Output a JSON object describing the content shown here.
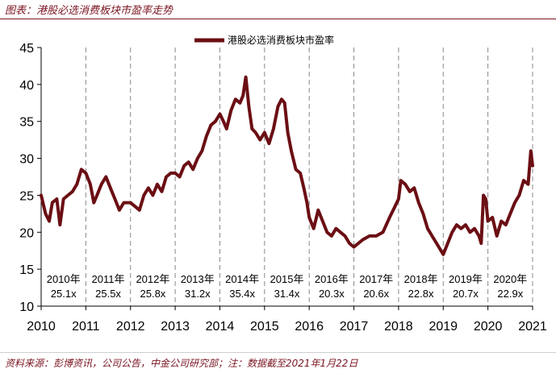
{
  "header": {
    "title": "图表：港股必选消费板块市盈率走势"
  },
  "footer": {
    "source": "资料来源：彭博资讯，公司公告，中金公司研究部；注：数据截至2021年1月22日"
  },
  "colors": {
    "series": "#6b0f14",
    "title": "#7a1420",
    "grid": "#888888"
  },
  "chart_data": {
    "type": "line",
    "title": "图表：港股必选消费板块市盈率走势",
    "xlabel": "",
    "ylabel": "",
    "ylim": [
      10,
      45
    ],
    "xlim": [
      2010,
      2021
    ],
    "yticks": [
      "10",
      "15",
      "20",
      "25",
      "30",
      "35",
      "40",
      "45"
    ],
    "xticks": [
      "2010",
      "2011",
      "2012",
      "2013",
      "2014",
      "2015",
      "2016",
      "2017",
      "2018",
      "2019",
      "2020",
      "2021"
    ],
    "grid": "vertical dashed at year boundaries",
    "legend": "top-center",
    "series": [
      {
        "name": "港股必选消费板块市盈率",
        "points": [
          [
            2010.0,
            25.0
          ],
          [
            2010.1,
            22.5
          ],
          [
            2010.18,
            21.5
          ],
          [
            2010.25,
            24.0
          ],
          [
            2010.35,
            24.5
          ],
          [
            2010.42,
            21.0
          ],
          [
            2010.5,
            24.5
          ],
          [
            2010.6,
            25.0
          ],
          [
            2010.7,
            25.5
          ],
          [
            2010.8,
            26.5
          ],
          [
            2010.9,
            28.5
          ],
          [
            2011.0,
            28.0
          ],
          [
            2011.1,
            26.5
          ],
          [
            2011.18,
            24.0
          ],
          [
            2011.25,
            25.0
          ],
          [
            2011.35,
            26.5
          ],
          [
            2011.45,
            27.5
          ],
          [
            2011.55,
            26.0
          ],
          [
            2011.65,
            24.5
          ],
          [
            2011.75,
            23.0
          ],
          [
            2011.85,
            24.0
          ],
          [
            2012.0,
            24.0
          ],
          [
            2012.1,
            23.5
          ],
          [
            2012.2,
            23.0
          ],
          [
            2012.3,
            25.0
          ],
          [
            2012.4,
            26.0
          ],
          [
            2012.5,
            25.0
          ],
          [
            2012.6,
            26.5
          ],
          [
            2012.7,
            25.5
          ],
          [
            2012.8,
            27.5
          ],
          [
            2012.9,
            28.0
          ],
          [
            2013.0,
            28.0
          ],
          [
            2013.1,
            27.5
          ],
          [
            2013.2,
            29.0
          ],
          [
            2013.3,
            29.5
          ],
          [
            2013.4,
            28.5
          ],
          [
            2013.5,
            30.0
          ],
          [
            2013.6,
            31.0
          ],
          [
            2013.7,
            33.0
          ],
          [
            2013.8,
            34.5
          ],
          [
            2013.9,
            35.0
          ],
          [
            2014.0,
            36.0
          ],
          [
            2014.08,
            35.0
          ],
          [
            2014.15,
            34.0
          ],
          [
            2014.25,
            36.5
          ],
          [
            2014.35,
            38.0
          ],
          [
            2014.45,
            37.5
          ],
          [
            2014.52,
            38.5
          ],
          [
            2014.58,
            41.0
          ],
          [
            2014.65,
            37.0
          ],
          [
            2014.72,
            34.0
          ],
          [
            2014.8,
            33.5
          ],
          [
            2014.9,
            32.5
          ],
          [
            2015.0,
            33.5
          ],
          [
            2015.1,
            32.0
          ],
          [
            2015.2,
            34.0
          ],
          [
            2015.3,
            37.0
          ],
          [
            2015.38,
            38.0
          ],
          [
            2015.45,
            37.5
          ],
          [
            2015.52,
            33.5
          ],
          [
            2015.6,
            31.0
          ],
          [
            2015.7,
            28.5
          ],
          [
            2015.8,
            28.0
          ],
          [
            2015.88,
            26.0
          ],
          [
            2015.95,
            24.0
          ],
          [
            2016.0,
            22.0
          ],
          [
            2016.1,
            20.5
          ],
          [
            2016.2,
            23.0
          ],
          [
            2016.3,
            21.5
          ],
          [
            2016.4,
            20.0
          ],
          [
            2016.5,
            19.5
          ],
          [
            2016.6,
            20.5
          ],
          [
            2016.7,
            20.0
          ],
          [
            2016.8,
            19.5
          ],
          [
            2016.9,
            18.5
          ],
          [
            2017.0,
            18.0
          ],
          [
            2017.1,
            18.5
          ],
          [
            2017.2,
            19.0
          ],
          [
            2017.35,
            19.5
          ],
          [
            2017.5,
            19.5
          ],
          [
            2017.65,
            20.0
          ],
          [
            2017.8,
            22.0
          ],
          [
            2017.92,
            23.5
          ],
          [
            2018.0,
            24.5
          ],
          [
            2018.05,
            27.0
          ],
          [
            2018.15,
            26.5
          ],
          [
            2018.25,
            25.5
          ],
          [
            2018.35,
            26.0
          ],
          [
            2018.45,
            24.0
          ],
          [
            2018.55,
            22.5
          ],
          [
            2018.65,
            20.5
          ],
          [
            2018.75,
            19.5
          ],
          [
            2018.85,
            18.5
          ],
          [
            2018.95,
            17.5
          ],
          [
            2019.0,
            17.0
          ],
          [
            2019.1,
            18.5
          ],
          [
            2019.2,
            20.0
          ],
          [
            2019.3,
            21.0
          ],
          [
            2019.4,
            20.5
          ],
          [
            2019.5,
            21.0
          ],
          [
            2019.6,
            20.0
          ],
          [
            2019.7,
            20.5
          ],
          [
            2019.8,
            19.5
          ],
          [
            2019.85,
            18.5
          ],
          [
            2019.9,
            25.0
          ],
          [
            2019.95,
            24.5
          ],
          [
            2020.0,
            21.5
          ],
          [
            2020.1,
            22.0
          ],
          [
            2020.2,
            19.5
          ],
          [
            2020.3,
            21.5
          ],
          [
            2020.4,
            21.0
          ],
          [
            2020.5,
            22.5
          ],
          [
            2020.6,
            24.0
          ],
          [
            2020.7,
            25.0
          ],
          [
            2020.8,
            27.0
          ],
          [
            2020.9,
            26.5
          ],
          [
            2020.96,
            31.0
          ],
          [
            2021.0,
            29.0
          ]
        ]
      }
    ],
    "annotations": [
      {
        "year": "2010年",
        "pe": "25.1x"
      },
      {
        "year": "2011年",
        "pe": "25.5x"
      },
      {
        "year": "2012年",
        "pe": "25.8x"
      },
      {
        "year": "2013年",
        "pe": "31.2x"
      },
      {
        "year": "2014年",
        "pe": "35.4x"
      },
      {
        "year": "2015年",
        "pe": "31.4x"
      },
      {
        "year": "2016年",
        "pe": "20.3x"
      },
      {
        "year": "2017年",
        "pe": "20.6x"
      },
      {
        "year": "2018年",
        "pe": "22.8x"
      },
      {
        "year": "2019年",
        "pe": "20.7x"
      },
      {
        "year": "2020年",
        "pe": "22.9x"
      }
    ]
  }
}
